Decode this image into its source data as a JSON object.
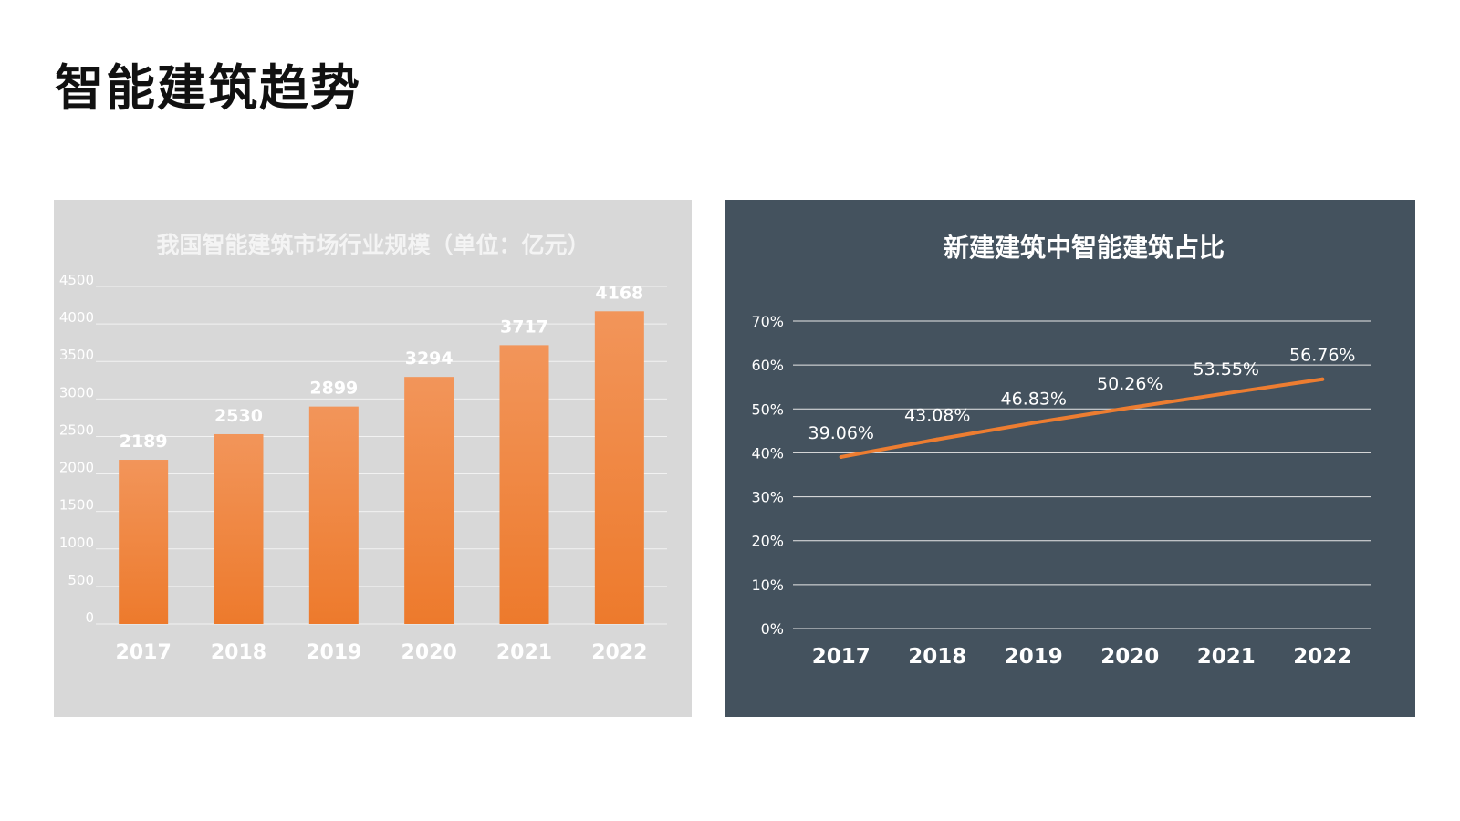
{
  "page": {
    "title": "智能建筑趋势"
  },
  "chart_data": [
    {
      "type": "bar",
      "title": "我国智能建筑市场行业规模（单位：亿元）",
      "categories": [
        "2017",
        "2018",
        "2019",
        "2020",
        "2021",
        "2022"
      ],
      "values": [
        2189,
        2530,
        2899,
        3294,
        3717,
        4168
      ],
      "data_labels": [
        "2189",
        "2530",
        "2899",
        "3294",
        "3717",
        "4168"
      ],
      "ylim": [
        0,
        4500
      ],
      "yticks": [
        "0",
        "500",
        "1000",
        "1500",
        "2000",
        "2500",
        "3000",
        "3500",
        "4000",
        "4500"
      ],
      "grid": true,
      "colors": {
        "bar": "#ed7a2c",
        "bar_top": "#f2955a",
        "background": "#d8d8d8",
        "text": "#ffffff"
      }
    },
    {
      "type": "line",
      "title": "新建建筑中智能建筑占比",
      "categories": [
        "2017",
        "2018",
        "2019",
        "2020",
        "2021",
        "2022"
      ],
      "values": [
        39.06,
        43.08,
        46.83,
        50.26,
        53.55,
        56.76
      ],
      "data_labels": [
        "39.06%",
        "43.08%",
        "46.83%",
        "50.26%",
        "53.55%",
        "56.76%"
      ],
      "ylim": [
        0,
        70
      ],
      "yticks": [
        "0%",
        "10%",
        "20%",
        "30%",
        "40%",
        "50%",
        "60%",
        "70%"
      ],
      "grid": true,
      "colors": {
        "line": "#ed7d31",
        "background": "#44525e",
        "text": "#ffffff"
      }
    }
  ]
}
